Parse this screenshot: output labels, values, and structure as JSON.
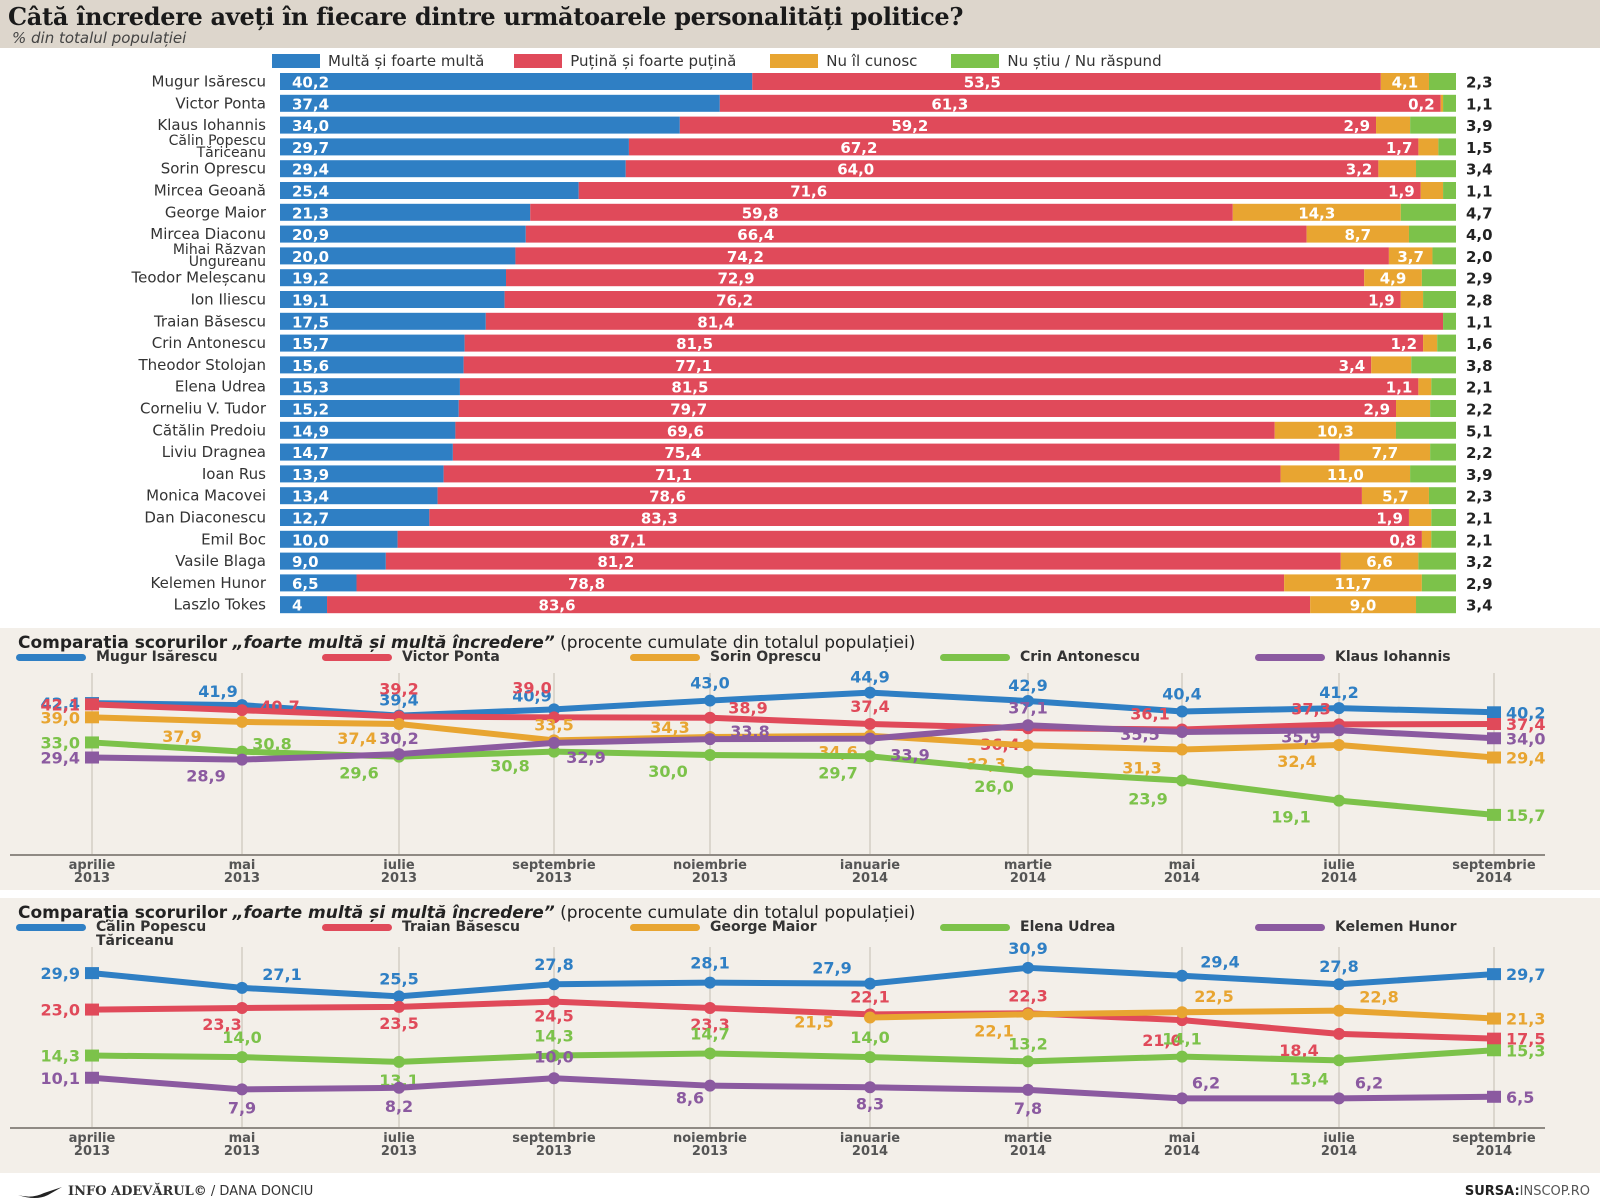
{
  "header": {
    "title": "Câtă încredere aveți în fiecare dintre următoarele personalități politice?",
    "subtitle": "% din totalul populației"
  },
  "footer": {
    "credit_brand": "INFO ADEVĂRUL©",
    "credit_author": "/ DANA DONCIU",
    "source_label": "SURSA:",
    "source_value": "INSCOP.RO"
  },
  "colors": {
    "blue": "#2f7fc4",
    "red": "#e04a5a",
    "orange": "#e8a531",
    "green": "#7cc24a",
    "purple": "#8b5aa0",
    "chart_bg": "#f3efe9",
    "header_bg": "#ddd6cc"
  },
  "chart_data": [
    {
      "type": "bar",
      "stacked": true,
      "orientation": "horizontal",
      "title": "Câtă încredere aveți în fiecare dintre următoarele personalități politice?",
      "subtitle": "% din totalul populației",
      "legend_position": "top",
      "xlim": [
        0,
        100
      ],
      "series_names": [
        "Multă și foarte multă",
        "Puțină și foarte puțină",
        "Nu îl cunosc",
        "Nu știu / Nu răspund"
      ],
      "series_colors": [
        "#2f7fc4",
        "#e04a5a",
        "#e8a531",
        "#7cc24a"
      ],
      "categories": [
        "Mugur Isărescu",
        "Victor Ponta",
        "Klaus Iohannis",
        "Călin Popescu Tăriceanu",
        "Sorin Oprescu",
        "Mircea Geoană",
        "George Maior",
        "Mircea Diaconu",
        "Mihai Răzvan Ungureanu",
        "Teodor Meleșcanu",
        "Ion Iliescu",
        "Traian Băsescu",
        "Crin Antonescu",
        "Theodor Stolojan",
        "Elena Udrea",
        "Corneliu V. Tudor",
        "Cătălin Predoiu",
        "Liviu Dragnea",
        "Ioan Rus",
        "Monica Macovei",
        "Dan Diaconescu",
        "Emil Boc",
        "Vasile Blaga",
        "Kelemen Hunor",
        "Laszlo Tokes"
      ],
      "series": [
        {
          "name": "Multă și foarte multă",
          "values": [
            "40,2",
            "37,4",
            "34,0",
            "29,7",
            "29,4",
            "25,4",
            "21,3",
            "20,9",
            "20,0",
            "19,2",
            "19,1",
            "17,5",
            "15,7",
            "15,6",
            "15,3",
            "15,2",
            "14,9",
            "14,7",
            "13,9",
            "13,4",
            "12,7",
            "10,0",
            "9,0",
            "6,5",
            "4"
          ]
        },
        {
          "name": "Puțină și foarte puțină",
          "values": [
            "53,5",
            "61,3",
            "59,2",
            "67,2",
            "64,0",
            "71,6",
            "59,8",
            "66,4",
            "74,2",
            "72,9",
            "76,2",
            "81,4",
            "81,5",
            "77,1",
            "81,5",
            "79,7",
            "69,6",
            "75,4",
            "71,1",
            "78,6",
            "83,3",
            "87,1",
            "81,2",
            "78,8",
            "83,6"
          ]
        },
        {
          "name": "Nu îl cunosc",
          "values": [
            "4,1",
            "0,2",
            "2,9",
            "1,7",
            "3,2",
            "1,9",
            "14,3",
            "8,7",
            "3,7",
            "4,9",
            "1,9",
            "",
            "1,2",
            "3,4",
            "1,1",
            "2,9",
            "10,3",
            "7,7",
            "11,0",
            "5,7",
            "1,9",
            "0,8",
            "6,6",
            "11,7",
            "9,0"
          ]
        },
        {
          "name": "Nu știu / Nu răspund",
          "values": [
            "2,3",
            "1,1",
            "3,9",
            "1,5",
            "3,4",
            "1,1",
            "4,7",
            "4,0",
            "2,0",
            "2,9",
            "2,8",
            "1,1",
            "1,6",
            "3,8",
            "2,1",
            "2,2",
            "5,1",
            "2,2",
            "3,9",
            "2,3",
            "2,1",
            "2,1",
            "3,2",
            "2,9",
            "3,4"
          ]
        }
      ]
    },
    {
      "type": "line",
      "title_prefix": "Comparația scorurilor",
      "title_emph": "„foarte multă și multă încredere”",
      "title_suffix": "(procente cumulate din totalul populației)",
      "legend_position": "top",
      "ylim": [
        14,
        46
      ],
      "grid": "vertical",
      "x": [
        "aprilie|2013",
        "mai|2013",
        "iulie|2013",
        "septembrie|2013",
        "noiembrie|2013",
        "ianuarie|2014",
        "martie|2014",
        "mai|2014",
        "iulie|2014",
        "septembrie|2014"
      ],
      "series": [
        {
          "name": "Mugur Isărescu",
          "color": "#2f7fc4",
          "values": [
            42.4,
            41.9,
            39.4,
            40.9,
            43.0,
            44.9,
            42.9,
            40.4,
            41.2,
            40.2
          ]
        },
        {
          "name": "Victor Ponta",
          "color": "#e04a5a",
          "values": [
            42.1,
            40.7,
            39.2,
            39.0,
            38.9,
            37.4,
            36.4,
            36.1,
            37.3,
            37.4
          ]
        },
        {
          "name": "Sorin Oprescu",
          "color": "#e8a531",
          "values": [
            39.0,
            37.9,
            37.4,
            33.5,
            34.3,
            34.6,
            32.3,
            31.3,
            32.4,
            29.4
          ]
        },
        {
          "name": "Crin Antonescu",
          "color": "#7cc24a",
          "values": [
            33.0,
            30.8,
            29.6,
            30.8,
            30.0,
            29.7,
            26.0,
            23.9,
            19.1,
            15.7
          ]
        },
        {
          "name": "Klaus Iohannis",
          "color": "#8b5aa0",
          "values": [
            29.4,
            28.9,
            30.2,
            32.9,
            33.8,
            33.9,
            37.1,
            35.5,
            35.9,
            34.0
          ]
        }
      ]
    },
    {
      "type": "line",
      "title_prefix": "Comparația scorurilor",
      "title_emph": "„foarte multă și multă încredere”",
      "title_suffix": "(procente cumulate din totalul populației)",
      "legend_position": "top",
      "ylim": [
        4,
        32
      ],
      "grid": "vertical",
      "x": [
        "aprilie|2013",
        "mai|2013",
        "iulie|2013",
        "septembrie|2013",
        "noiembrie|2013",
        "ianuarie|2014",
        "martie|2014",
        "mai|2014",
        "iulie|2014",
        "septembrie|2014"
      ],
      "series": [
        {
          "name": "Călin Popescu|Tăriceanu",
          "color": "#2f7fc4",
          "values": [
            29.9,
            27.1,
            25.5,
            27.8,
            28.1,
            27.9,
            30.9,
            29.4,
            27.8,
            29.7
          ]
        },
        {
          "name": "Traian Băsescu",
          "color": "#e04a5a",
          "values": [
            23.0,
            23.3,
            23.5,
            24.5,
            23.3,
            22.1,
            22.3,
            21.0,
            18.4,
            17.5
          ]
        },
        {
          "name": "George Maior",
          "color": "#e8a531",
          "values": [
            null,
            null,
            null,
            null,
            null,
            21.5,
            22.1,
            22.5,
            22.8,
            21.3
          ]
        },
        {
          "name": "Elena Udrea",
          "color": "#7cc24a",
          "values": [
            14.3,
            14.0,
            13.1,
            14.3,
            14.7,
            14.0,
            13.2,
            14.1,
            13.4,
            15.3
          ]
        },
        {
          "name": "Kelemen Hunor",
          "color": "#8b5aa0",
          "values": [
            10.1,
            7.9,
            8.2,
            10.0,
            8.6,
            8.3,
            7.8,
            6.2,
            6.2,
            6.5
          ]
        }
      ]
    }
  ]
}
